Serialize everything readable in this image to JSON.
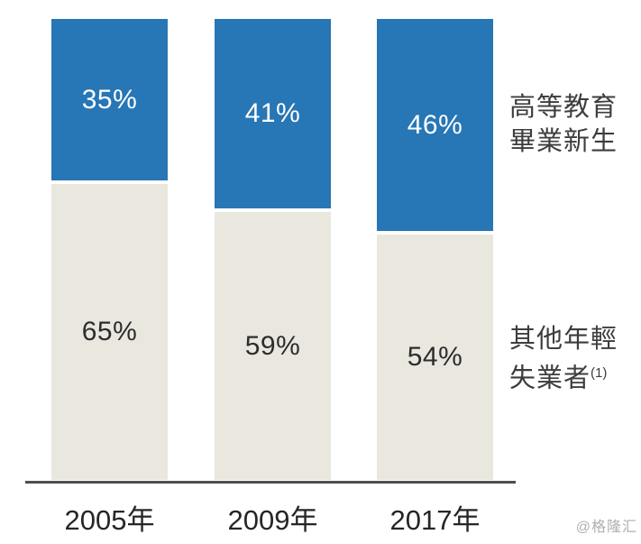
{
  "chart_data": {
    "type": "bar",
    "subtype": "100-percent-stacked-column",
    "categories": [
      "2005年",
      "2009年",
      "2017年"
    ],
    "series": [
      {
        "name": "高等教育畢業新生",
        "values": [
          35,
          41,
          46
        ],
        "color": "#2776b5"
      },
      {
        "name": "其他年輕失業者(1)",
        "values": [
          65,
          59,
          54
        ],
        "color": "#e9e7de"
      }
    ],
    "data_labels": {
      "top_segment": [
        "35%",
        "41%",
        "46%"
      ],
      "bottom_segment": [
        "65%",
        "59%",
        "54%"
      ]
    },
    "value_suffix": "%",
    "ylim": [
      0,
      100
    ],
    "grid": false,
    "legend_position": "right",
    "x_axis_line": true
  },
  "legend": {
    "top": {
      "line1": "高等教育",
      "line2": "畢業新生"
    },
    "bottom": {
      "line1": "其他年輕",
      "line2": "失業者",
      "superscript": "(1)"
    }
  },
  "watermark": "@格隆汇",
  "colors": {
    "blue": "#2776b5",
    "beige": "#e9e7de",
    "axis": "#4f4f4f",
    "label_on_blue": "#ffffff",
    "label_on_beige": "#2d2d2d",
    "year_text": "#262626",
    "legend_text": "#3d3d3d",
    "watermark_text": "#b1aeae"
  }
}
